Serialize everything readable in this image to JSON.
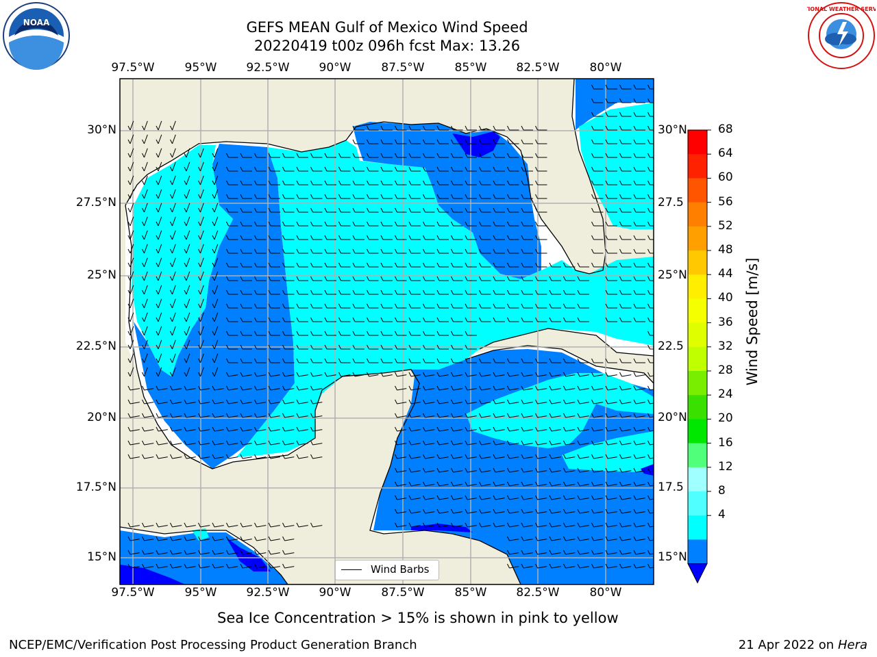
{
  "title_line1": "GEFS MEAN Gulf of Mexico Wind Speed",
  "title_line2": "20220419 t00z 096h fcst   Max: 13.26",
  "lon_labels": [
    "97.5°W",
    "95°W",
    "92.5°W",
    "90°W",
    "87.5°W",
    "85°W",
    "82.5°W",
    "80°W"
  ],
  "lat_labels": [
    "30°N",
    "27.5°N",
    "25°N",
    "22.5°N",
    "20°N",
    "17.5°N",
    "15°N"
  ],
  "lat_labels_right": [
    "30°N",
    "27.5",
    "25°N",
    "22.5",
    "20°N",
    "17.5",
    "15°N"
  ],
  "colorbar": {
    "label": "Wind Speed [m/s]",
    "ticks": [
      "68",
      "64",
      "60",
      "56",
      "52",
      "48",
      "44",
      "40",
      "36",
      "32",
      "28",
      "24",
      "20",
      "16",
      "12",
      "8",
      "4"
    ],
    "colors": [
      "#ff0000",
      "#ff2200",
      "#ff5500",
      "#ff7f00",
      "#ffa000",
      "#ffc800",
      "#ffee00",
      "#f5ff00",
      "#dfff00",
      "#c0ff00",
      "#7aee00",
      "#39e000",
      "#00e800",
      "#50ff7a",
      "#a0ffff",
      "#50ffff",
      "#00ffff",
      "#0080ff"
    ],
    "extend_color": "#0000ff"
  },
  "legend_label": "Wind Barbs",
  "sea_ice_note": "Sea Ice Concentration > 15% is shown in pink to yellow",
  "footer_left": "NCEP/EMC/Verification Post Processing Product Generation Branch",
  "footer_right_date": "21 Apr 2022 on ",
  "footer_right_machine": "Hera",
  "logos": {
    "left": "NOAA",
    "right": "NATIONAL WEATHER SERVICE"
  },
  "colors": {
    "land": "#efeddc",
    "deep_blue": "#0080ff",
    "cyan": "#00ffff",
    "dark_blue": "#0000ff",
    "grid": "#b0b0b0"
  }
}
